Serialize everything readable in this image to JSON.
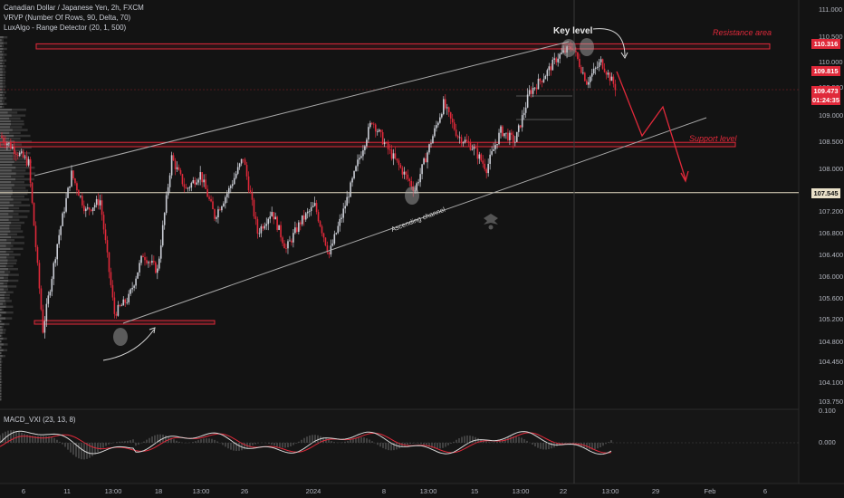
{
  "header": {
    "symbol_line": "Canadian Dollar / Japanese Yen, 2h, FXCM",
    "indicator1": "VRVP (Number Of Rows, 90, Delta, 70)",
    "indicator2": "LuxAlgo - Range Detector (20, 1, 500)"
  },
  "annotations": {
    "key_level": "Key level",
    "resistance_area": "Resistance area",
    "support_level": "Support level",
    "ascending_channel": "Ascending channel"
  },
  "price_tags": {
    "resistance": "110.316",
    "upper": "109.815",
    "current": "109.473",
    "countdown": "01:24:35",
    "line": "107.545"
  },
  "macd": {
    "label": "MACD_VXI (23, 13, 8)",
    "axis_ticks": [
      "0.100",
      "0.000"
    ]
  },
  "colors": {
    "background": "#131313",
    "bull_candle": "#c9ccd4",
    "bear_candle": "#e0293a",
    "resistance": "#e0293a",
    "channel": "#a9a9a9",
    "macd_line": "#d8d8d8",
    "signal_line": "#e0293a"
  },
  "chart_data": {
    "type": "candlestick",
    "y_axis_ticks": [
      "111.000",
      "110.500",
      "110.000",
      "109.500",
      "109.000",
      "108.500",
      "108.000",
      "107.200",
      "106.800",
      "106.400",
      "106.000",
      "105.600",
      "105.200",
      "104.800",
      "104.450",
      "104.100",
      "103.750"
    ],
    "x_axis_ticks": [
      "6",
      "11",
      "13:00",
      "18",
      "13:00",
      "26",
      "2024",
      "8",
      "13:00",
      "15",
      "13:00",
      "22",
      "13:00",
      "29",
      "Feb",
      "6"
    ],
    "price_path": [
      [
        0,
        108.6
      ],
      [
        4,
        108.1
      ],
      [
        6,
        105.0
      ],
      [
        8,
        106.6
      ],
      [
        10,
        107.9
      ],
      [
        12,
        107.2
      ],
      [
        14,
        107.4
      ],
      [
        16,
        105.3
      ],
      [
        18,
        105.6
      ],
      [
        20,
        106.4
      ],
      [
        22,
        106.1
      ],
      [
        24,
        108.2
      ],
      [
        26,
        107.6
      ],
      [
        28,
        107.9
      ],
      [
        30,
        107.1
      ],
      [
        32,
        107.6
      ],
      [
        34,
        108.2
      ],
      [
        36,
        106.8
      ],
      [
        38,
        107.2
      ],
      [
        40,
        106.5
      ],
      [
        42,
        107.0
      ],
      [
        44,
        107.3
      ],
      [
        46,
        106.4
      ],
      [
        48,
        107.2
      ],
      [
        50,
        108.1
      ],
      [
        52,
        108.9
      ],
      [
        54,
        108.4
      ],
      [
        56,
        108.0
      ],
      [
        58,
        107.6
      ],
      [
        60,
        108.4
      ],
      [
        62,
        109.2
      ],
      [
        64,
        108.6
      ],
      [
        66,
        108.4
      ],
      [
        68,
        108.0
      ],
      [
        70,
        108.7
      ],
      [
        72,
        108.5
      ],
      [
        74,
        109.4
      ],
      [
        76,
        109.7
      ],
      [
        78,
        110.1
      ],
      [
        80,
        110.3
      ],
      [
        82,
        109.6
      ],
      [
        84,
        110.0
      ],
      [
        86,
        109.5
      ]
    ],
    "resistance_zone": [
      110.25,
      110.35
    ],
    "support_zone": [
      108.4,
      108.48
    ],
    "horizontal_line": 107.545,
    "bottom_range_zone": [
      105.08,
      105.13
    ],
    "key_level_markers": [
      [
        80,
        110.3
      ],
      [
        83,
        110.2
      ]
    ],
    "swing_markers": [
      [
        16,
        104.85
      ],
      [
        53,
        107.4
      ]
    ],
    "ascending_channel": {
      "lower": [
        [
          16,
          105.2
        ],
        [
          93,
          109.0
        ]
      ],
      "upper": [
        [
          5,
          107.8
        ],
        [
          80,
          110.3
        ]
      ]
    },
    "projection": [
      [
        86,
        109.6
      ],
      [
        90,
        108.6
      ],
      [
        93,
        109.4
      ],
      [
        97,
        107.9
      ]
    ]
  }
}
